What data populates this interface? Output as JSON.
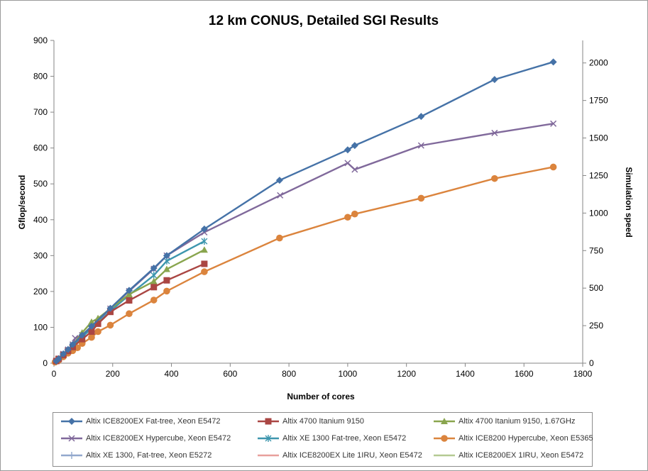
{
  "chart_data": {
    "type": "line",
    "title": "12 km CONUS, Detailed SGI Results",
    "xlabel": "Number of cores",
    "ylabel": "Gflop/second",
    "y2label": "Simulation speed",
    "xlim": [
      0,
      1800
    ],
    "ylim": [
      0,
      900
    ],
    "y2lim": [
      0,
      2150
    ],
    "xticks": [
      "0",
      "200",
      "400",
      "600",
      "800",
      "1000",
      "1200",
      "1400",
      "1600",
      "1800"
    ],
    "yticks": [
      "0",
      "100",
      "200",
      "300",
      "400",
      "500",
      "600",
      "700",
      "800",
      "900"
    ],
    "y2ticks": [
      "0",
      "250",
      "500",
      "750",
      "1000",
      "1250",
      "1500",
      "1750",
      "2000"
    ],
    "grid": false,
    "legend_position": "bottom",
    "series": [
      {
        "name": "Altix ICE8200EX Fat-tree,   Xeon E5472",
        "color": "#4572A7",
        "marker": "diamond",
        "x": [
          8,
          16,
          32,
          48,
          64,
          96,
          128,
          192,
          256,
          340,
          384,
          512,
          768,
          1000,
          1024,
          1250,
          1500,
          1700
        ],
        "y": [
          6,
          12,
          26,
          38,
          52,
          78,
          103,
          153,
          203,
          265,
          300,
          374,
          510,
          595,
          607,
          688,
          791,
          840
        ]
      },
      {
        "name": "Altix 4700 Itanium 9150",
        "color": "#AA4643",
        "marker": "square",
        "x": [
          8,
          16,
          32,
          48,
          64,
          96,
          128,
          150,
          192,
          256,
          340,
          384,
          512
        ],
        "y": [
          6,
          12,
          23,
          34,
          45,
          67,
          88,
          110,
          143,
          175,
          212,
          231,
          277
        ]
      },
      {
        "name": "Altix 4700 Itanium 9150, 1.67GHz",
        "color": "#89A54E",
        "marker": "triangle",
        "x": [
          8,
          16,
          32,
          48,
          64,
          96,
          128,
          150,
          192,
          256,
          340,
          384,
          512
        ],
        "y": [
          6,
          12,
          25,
          38,
          50,
          85,
          115,
          125,
          152,
          192,
          228,
          262,
          316
        ]
      },
      {
        "name": "Altix ICE8200EX Hypercube, Xeon E5472",
        "color": "#80699B",
        "marker": "x",
        "x": [
          8,
          16,
          32,
          48,
          64,
          72,
          96,
          128,
          192,
          256,
          340,
          384,
          512,
          770,
          1000,
          1024,
          1250,
          1500,
          1700
        ],
        "y": [
          6,
          12,
          26,
          38,
          52,
          70,
          78,
          103,
          152,
          201,
          263,
          300,
          365,
          468,
          558,
          540,
          607,
          642,
          668
        ]
      },
      {
        "name": "Altix XE 1300 Fat-tree, Xeon E5472",
        "color": "#3D96AE",
        "marker": "asterisk",
        "x": [
          8,
          16,
          32,
          48,
          64,
          96,
          128,
          192,
          256,
          340,
          384,
          512
        ],
        "y": [
          6,
          12,
          24,
          36,
          48,
          73,
          97,
          145,
          190,
          245,
          285,
          340
        ]
      },
      {
        "name": "Altix ICE8200 Hypercube, Xeon E5365",
        "color": "#DB843D",
        "marker": "circle",
        "x": [
          4,
          16,
          32,
          48,
          64,
          80,
          96,
          128,
          150,
          192,
          256,
          340,
          384,
          512,
          768,
          1000,
          1024,
          1250,
          1500,
          1700
        ],
        "y": [
          3,
          8,
          18,
          28,
          35,
          43,
          55,
          72,
          88,
          106,
          138,
          176,
          201,
          255,
          349,
          407,
          416,
          460,
          515,
          547
        ]
      },
      {
        "name": "Altix XE 1300,  Fat-tree,    Xeon E5272",
        "color": "#92A8CD",
        "marker": "plus",
        "x": [
          8,
          16,
          32,
          48,
          64,
          80,
          96
        ],
        "y": [
          6,
          12,
          25,
          38,
          50,
          62,
          75
        ]
      },
      {
        "name": "Altix ICE8200EX Lite 1IRU, Xeon E5472",
        "color": "#E8A09C",
        "marker": "none",
        "x": [
          8,
          16,
          32,
          48,
          64,
          80
        ],
        "y": [
          6,
          12,
          25,
          38,
          51,
          64
        ]
      },
      {
        "name": "Altix ICE8200EX 1IRU, Xeon E5472",
        "color": "#B5CA92",
        "marker": "none",
        "x": [
          8,
          16,
          32,
          48,
          64,
          80
        ],
        "y": [
          6,
          12,
          24,
          36,
          48,
          60
        ]
      }
    ]
  }
}
